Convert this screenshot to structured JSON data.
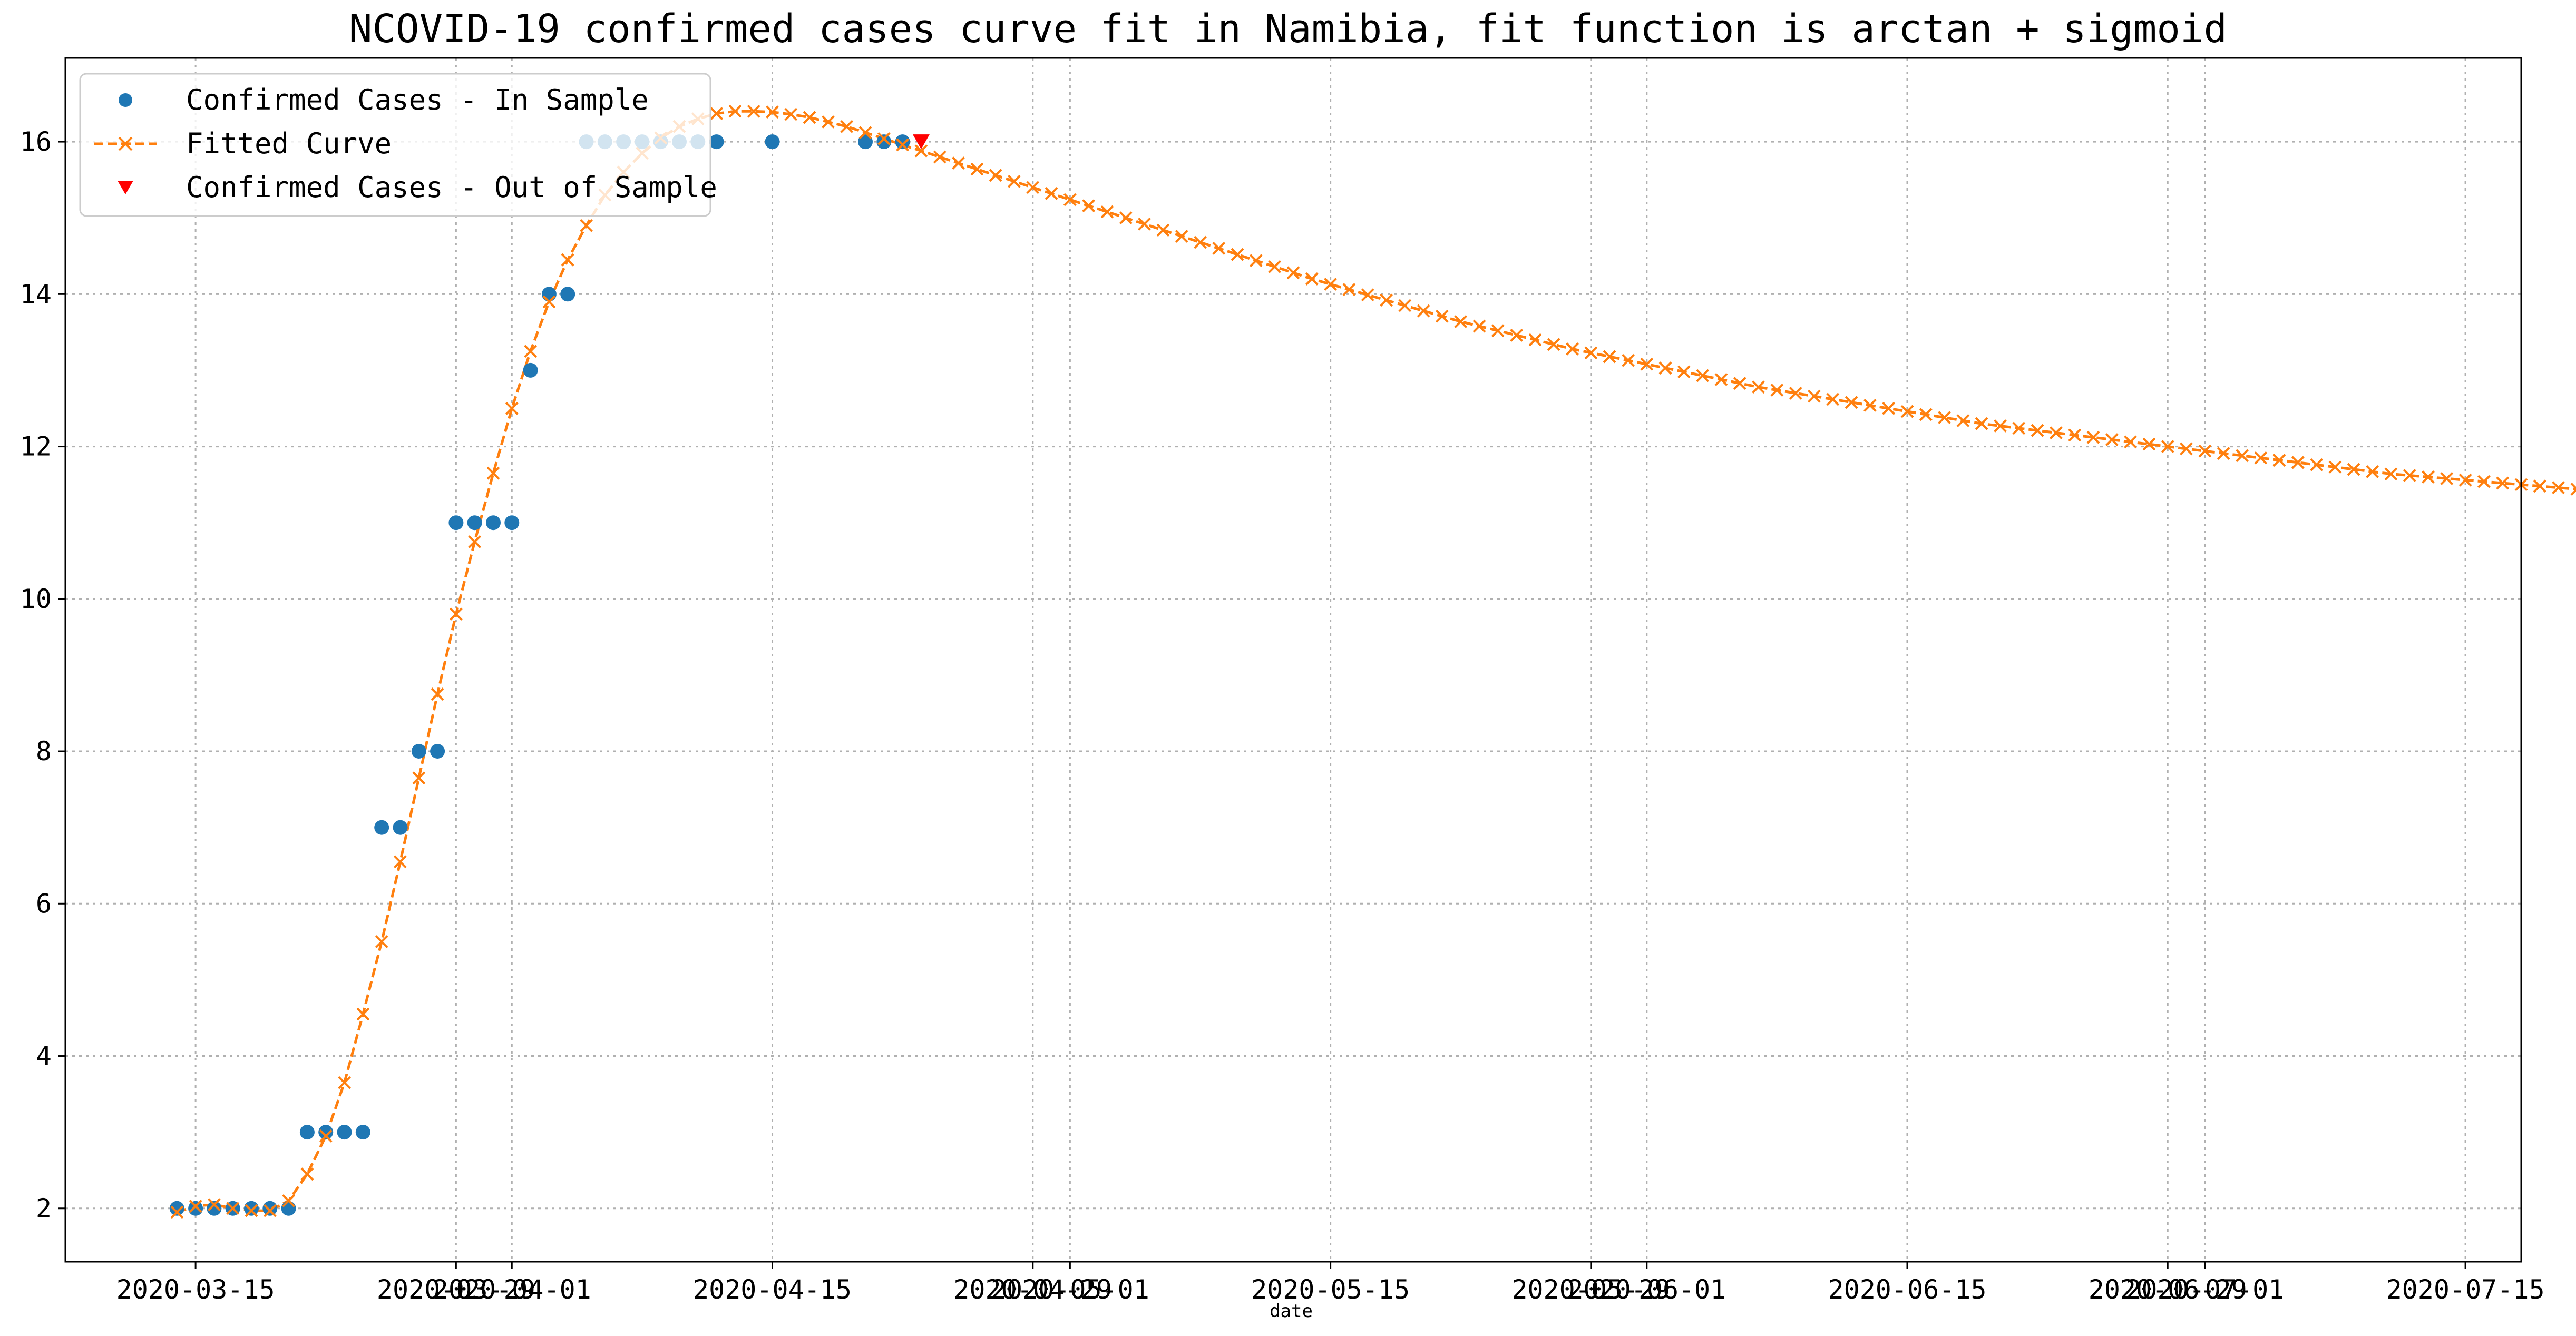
{
  "chart_data": {
    "type": "line",
    "title": "NCOVID-19 confirmed cases curve fit in Namibia, fit function is arctan + sigmoid",
    "xlabel": "date",
    "ylabel": "",
    "x_range": [
      "2020-03-08",
      "2020-07-18"
    ],
    "ylim": [
      1.3,
      17.1
    ],
    "grid": true,
    "legend_position": "top-left",
    "x_ticks": [
      {
        "date": "2020-03-15",
        "label": "2020-03-15"
      },
      {
        "date": "2020-03-29",
        "label": "2020-03-29"
      },
      {
        "date": "2020-04-01",
        "label": "2020-04-01"
      },
      {
        "date": "2020-04-15",
        "label": "2020-04-15"
      },
      {
        "date": "2020-04-29",
        "label": "2020-04-29"
      },
      {
        "date": "2020-05-01",
        "label": "2020-05-01"
      },
      {
        "date": "2020-05-15",
        "label": "2020-05-15"
      },
      {
        "date": "2020-05-29",
        "label": "2020-05-29"
      },
      {
        "date": "2020-06-01",
        "label": "2020-06-01"
      },
      {
        "date": "2020-06-15",
        "label": "2020-06-15"
      },
      {
        "date": "2020-06-29",
        "label": "2020-06-29"
      },
      {
        "date": "2020-07-01",
        "label": "2020-07-01"
      },
      {
        "date": "2020-07-15",
        "label": "2020-07-15"
      }
    ],
    "y_ticks": [
      2,
      4,
      6,
      8,
      10,
      12,
      14,
      16
    ],
    "series": [
      {
        "name": "Confirmed Cases - In Sample",
        "color": "#1f77b4",
        "marker": "circle",
        "x": [
          "2020-03-14",
          "2020-03-15",
          "2020-03-16",
          "2020-03-17",
          "2020-03-18",
          "2020-03-19",
          "2020-03-20",
          "2020-03-21",
          "2020-03-22",
          "2020-03-23",
          "2020-03-24",
          "2020-03-25",
          "2020-03-26",
          "2020-03-27",
          "2020-03-28",
          "2020-03-29",
          "2020-03-30",
          "2020-03-31",
          "2020-04-01",
          "2020-04-02",
          "2020-04-03",
          "2020-04-04",
          "2020-04-05",
          "2020-04-06",
          "2020-04-07",
          "2020-04-08",
          "2020-04-09",
          "2020-04-10",
          "2020-04-11",
          "2020-04-12",
          "2020-04-15",
          "2020-04-20",
          "2020-04-21",
          "2020-04-22"
        ],
        "y": [
          2,
          2,
          2,
          2,
          2,
          2,
          2,
          3,
          3,
          3,
          3,
          7,
          7,
          8,
          8,
          11,
          11,
          11,
          11,
          13,
          14,
          14,
          16,
          16,
          16,
          16,
          16,
          16,
          16,
          16,
          16,
          16,
          16,
          16
        ]
      },
      {
        "name": "Fitted Curve",
        "color": "#ff7f0e",
        "marker": "x",
        "linestyle": "dashed",
        "start_date": "2020-03-14",
        "y": [
          1.95,
          2.03,
          2.05,
          2.0,
          1.97,
          1.97,
          2.1,
          2.45,
          2.95,
          3.65,
          4.55,
          5.5,
          6.55,
          7.65,
          8.75,
          9.8,
          10.75,
          11.65,
          12.5,
          13.25,
          13.9,
          14.45,
          14.9,
          15.3,
          15.6,
          15.85,
          16.05,
          16.2,
          16.3,
          16.37,
          16.4,
          16.4,
          16.39,
          16.36,
          16.32,
          16.26,
          16.2,
          16.12,
          16.04,
          15.96,
          15.88,
          15.8,
          15.72,
          15.64,
          15.56,
          15.48,
          15.4,
          15.32,
          15.24,
          15.16,
          15.08,
          15.0,
          14.92,
          14.84,
          14.76,
          14.68,
          14.6,
          14.52,
          14.44,
          14.36,
          14.28,
          14.2,
          14.13,
          14.06,
          13.99,
          13.92,
          13.85,
          13.78,
          13.71,
          13.64,
          13.58,
          13.52,
          13.46,
          13.4,
          13.34,
          13.28,
          13.23,
          13.18,
          13.13,
          13.08,
          13.03,
          12.98,
          12.93,
          12.88,
          12.83,
          12.78,
          12.74,
          12.7,
          12.66,
          12.62,
          12.58,
          12.54,
          12.5,
          12.46,
          12.42,
          12.38,
          12.34,
          12.3,
          12.27,
          12.24,
          12.21,
          12.18,
          12.15,
          12.12,
          12.09,
          12.06,
          12.03,
          12.0,
          11.97,
          11.94,
          11.91,
          11.88,
          11.85,
          11.82,
          11.79,
          11.76,
          11.73,
          11.7,
          11.67,
          11.64,
          11.62,
          11.6,
          11.58,
          11.56,
          11.54,
          11.52,
          11.5,
          11.48,
          11.46,
          11.44,
          11.42,
          11.4
        ]
      },
      {
        "name": "Confirmed Cases - Out of Sample",
        "color": "#ff0000",
        "marker": "triangle-down",
        "x": [
          "2020-04-23"
        ],
        "y": [
          16
        ]
      }
    ]
  }
}
